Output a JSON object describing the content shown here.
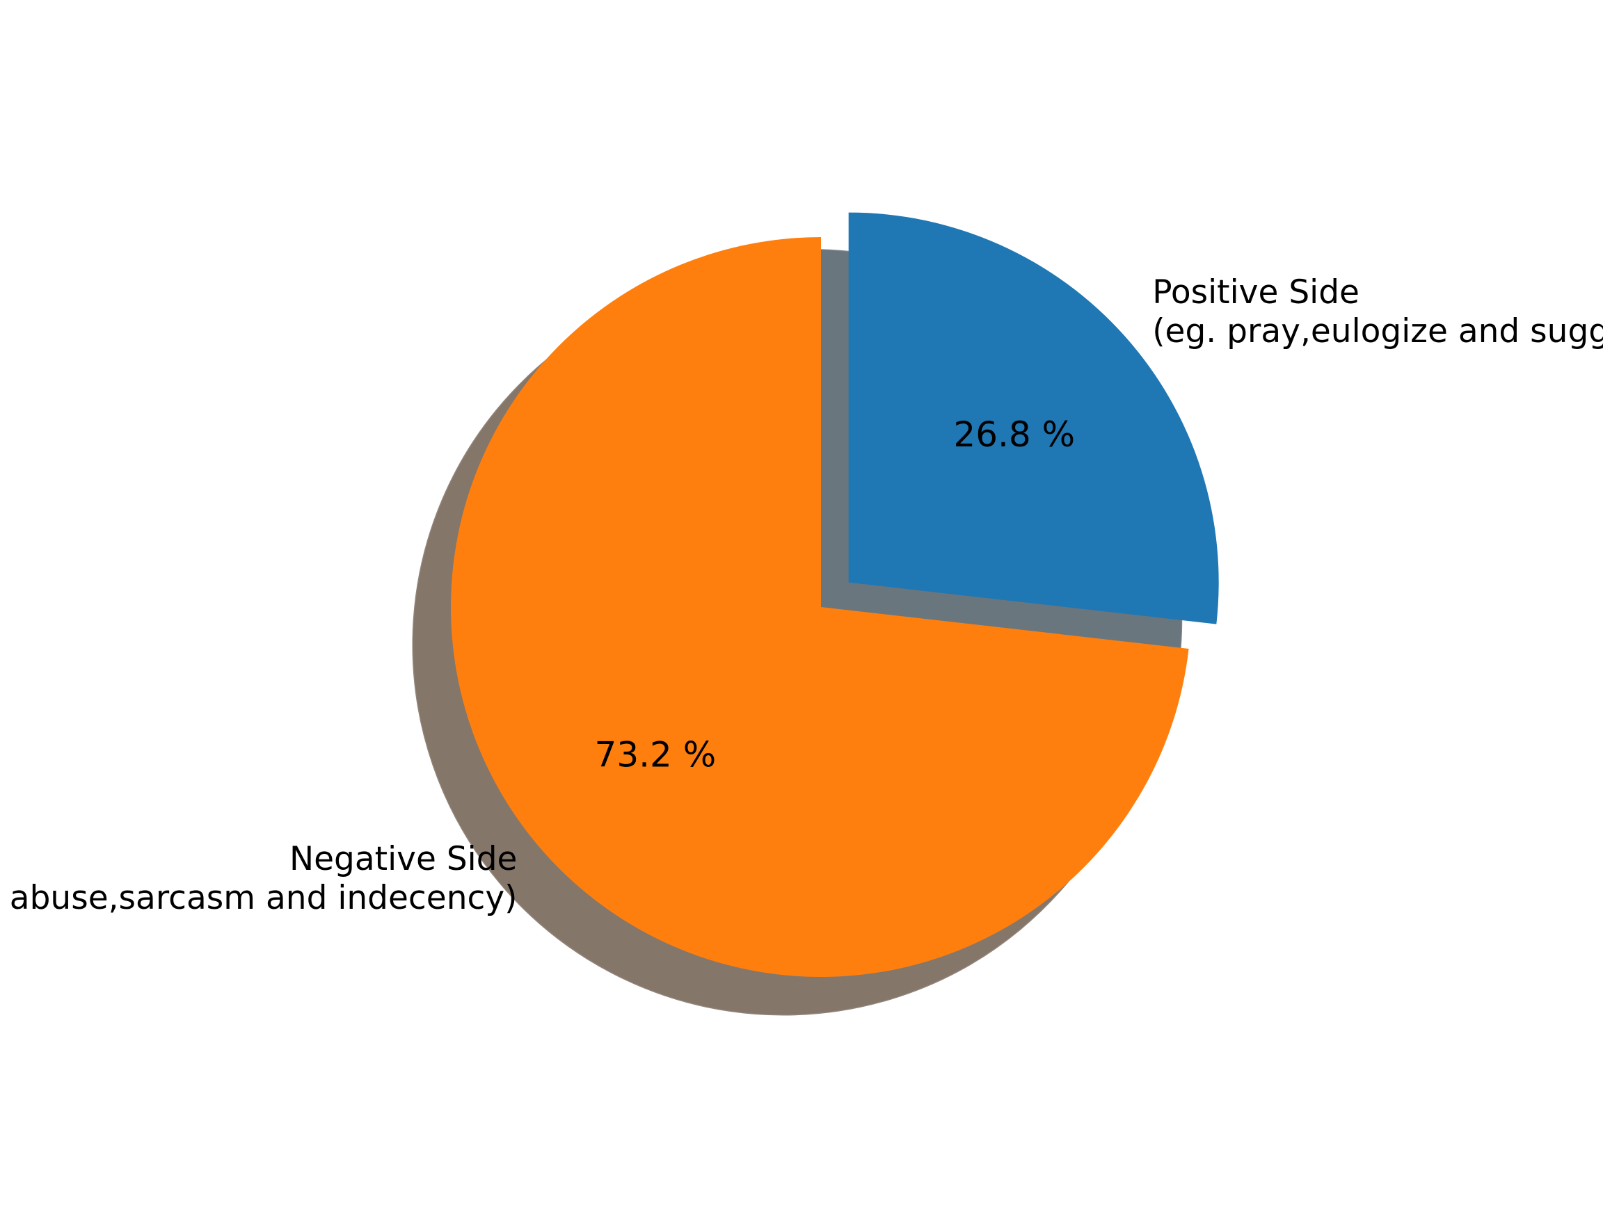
{
  "chart_data": {
    "type": "pie",
    "title": "",
    "start_angle_deg": 90,
    "direction": "clockwise",
    "shadow": true,
    "slices": [
      {
        "label_lines": [
          "Positive Side",
          "(eg. pray,eulogize and suggestion)"
        ],
        "value": 26.8,
        "pct_label": "26.8 %",
        "color": "#1f77b4",
        "shadow_color": "#85939d",
        "explode": 0.1
      },
      {
        "label_lines": [
          "Negative Side",
          "(eg. abuse,sarcasm and indecency)"
        ],
        "value": 73.2,
        "pct_label": "73.2 %",
        "color": "#ff7f0e",
        "shadow_color": "#a69484",
        "explode": 0
      }
    ]
  }
}
